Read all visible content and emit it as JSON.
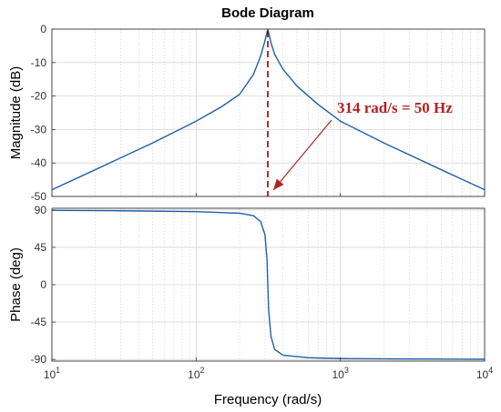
{
  "chart_data": {
    "type": "line",
    "title": "Bode Diagram",
    "xlabel": "Frequency  (rad/s)",
    "x_scale": "log",
    "xlim": [
      10,
      10000
    ],
    "x_ticks": [
      {
        "value": 10,
        "base": "10",
        "exp": "1"
      },
      {
        "value": 100,
        "base": "10",
        "exp": "2"
      },
      {
        "value": 1000,
        "base": "10",
        "exp": "3"
      },
      {
        "value": 10000,
        "base": "10",
        "exp": "4"
      }
    ],
    "grid": true,
    "line_color": "#1f5fa8",
    "plots": [
      {
        "name": "magnitude",
        "ylabel": "Magnitude (dB)",
        "ylim": [
          -50,
          0
        ],
        "y_ticks": [
          "0",
          "-10",
          "-20",
          "-30",
          "-40",
          "-50"
        ],
        "y_tick_values": [
          0,
          -10,
          -20,
          -30,
          -40,
          -50
        ],
        "series": [
          {
            "x": [
              10,
              20,
              50,
              100,
              150,
              200,
              250,
              280,
              300,
              314,
              330,
              350,
              400,
              500,
              700,
              1000,
              2000,
              5000,
              10000
            ],
            "values": [
              -48,
              -42,
              -34,
              -27.5,
              -23.2,
              -19.5,
              -13.5,
              -8,
              -3.5,
              0,
              -4,
              -7.5,
              -12,
              -17,
              -22.5,
              -27.5,
              -34,
              -42,
              -48
            ]
          }
        ]
      },
      {
        "name": "phase",
        "ylabel": "Phase (deg)",
        "ylim": [
          -92,
          92
        ],
        "y_ticks": [
          "90",
          "45",
          "0",
          "-45",
          "-90"
        ],
        "y_tick_values": [
          90,
          45,
          0,
          -45,
          -90
        ],
        "series": [
          {
            "x": [
              10,
              30,
              100,
              200,
              250,
              280,
              300,
              310,
              314,
              318,
              330,
              350,
              400,
              600,
              1000,
              3000,
              10000
            ],
            "values": [
              89.5,
              89,
              88,
              86,
              83,
              76,
              60,
              30,
              0,
              -30,
              -62,
              -78,
              -85,
              -88,
              -89,
              -89.5,
              -89.8
            ]
          }
        ]
      }
    ],
    "marker": {
      "x": 314,
      "color": "#8b0000",
      "annotation": "314 rad/s = 50 Hz",
      "annotation_color": "#b22222"
    }
  }
}
